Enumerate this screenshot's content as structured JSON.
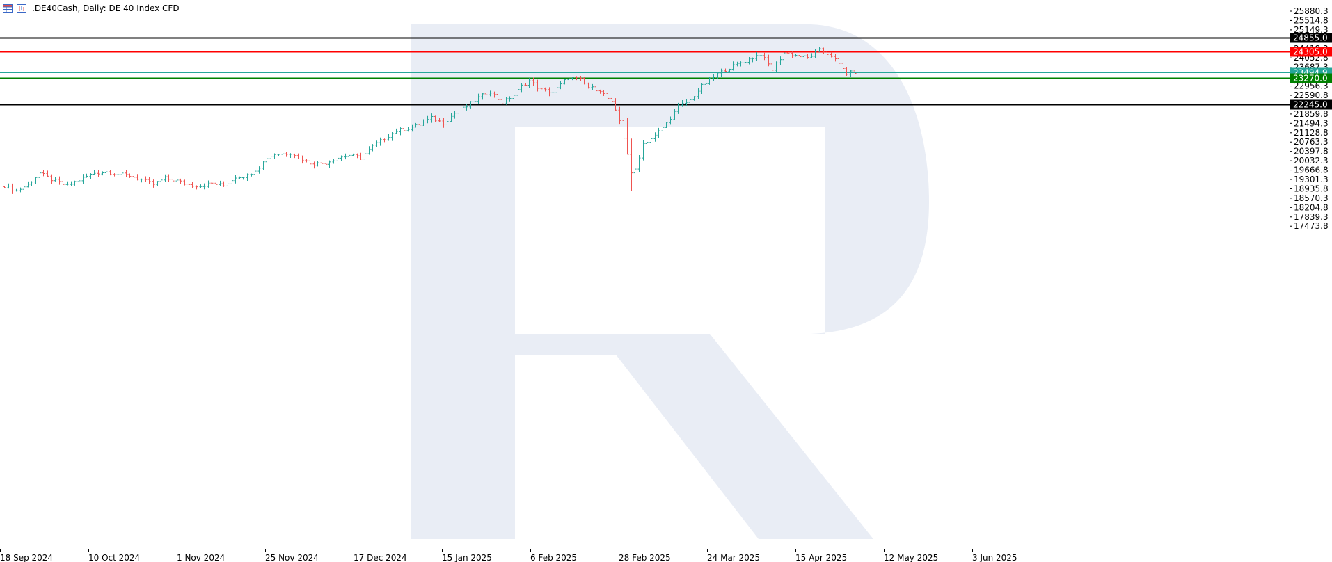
{
  "header": {
    "title": ".DE40Cash, Daily:  DE 40 Index CFD",
    "icons": [
      "table-icon",
      "chart-window-icon"
    ]
  },
  "colors": {
    "bull": "#26a69a",
    "bear": "#ef5350",
    "watermark": "#e9edf5",
    "resistance_high": "#000000",
    "resistance": "#ff0000",
    "current_price": "#26a69a",
    "support": "#008000",
    "support_low": "#000000"
  },
  "chart_data": {
    "type": "ohlc",
    "symbol": ".DE40Cash",
    "timeframe": "Daily",
    "title": ".DE40Cash, Daily:  DE 40 Index CFD",
    "ylim": [
      17200,
      26050
    ],
    "grid": false,
    "y_ticks": [
      "25880.3",
      "25514.8",
      "25149.3",
      "24783.8",
      "24418.3",
      "24052.8",
      "23687.3",
      "23321.8",
      "22956.3",
      "22590.8",
      "22225.3",
      "21859.8",
      "21494.3",
      "21128.8",
      "20763.3",
      "20397.8",
      "20032.3",
      "19666.8",
      "19301.3",
      "18935.8",
      "18570.3",
      "18204.8",
      "17839.3",
      "17473.8"
    ],
    "x_ticks": [
      "18 Sep 2024",
      "10 Oct 2024",
      "1 Nov 2024",
      "25 Nov 2024",
      "17 Dec 2024",
      "15 Jan 2025",
      "6 Feb 2025",
      "28 Feb 2025",
      "24 Mar 2025",
      "15 Apr 2025",
      "12 May 2025",
      "3 Jun 2025"
    ],
    "horizontal_levels": [
      {
        "value": 24855.0,
        "label": "24855.0",
        "style": "resistance_high"
      },
      {
        "value": 24305.0,
        "label": "24305.0",
        "style": "resistance"
      },
      {
        "value": 23494.9,
        "label": "23494.9",
        "style": "current_price"
      },
      {
        "value": 23270.0,
        "label": "23270.0",
        "style": "support"
      },
      {
        "value": 22245.0,
        "label": "22245.0",
        "style": "support_low"
      }
    ],
    "anchors": [
      [
        0,
        19050
      ],
      [
        3,
        18850
      ],
      [
        6,
        19100
      ],
      [
        9,
        19550
      ],
      [
        12,
        19300
      ],
      [
        16,
        19050
      ],
      [
        20,
        19350
      ],
      [
        23,
        19550
      ],
      [
        26,
        19600
      ],
      [
        29,
        19500
      ],
      [
        32,
        19450
      ],
      [
        35,
        19300
      ],
      [
        38,
        19100
      ],
      [
        41,
        19350
      ],
      [
        44,
        19250
      ],
      [
        47,
        19100
      ],
      [
        50,
        19050
      ],
      [
        53,
        19150
      ],
      [
        56,
        19050
      ],
      [
        59,
        19400
      ],
      [
        62,
        19450
      ],
      [
        65,
        19800
      ],
      [
        67,
        20150
      ],
      [
        69,
        20300
      ],
      [
        71,
        20300
      ],
      [
        73,
        20350
      ],
      [
        75,
        20200
      ],
      [
        77,
        20000
      ],
      [
        79,
        19900
      ],
      [
        82,
        19950
      ],
      [
        85,
        20150
      ],
      [
        88,
        20250
      ],
      [
        91,
        20150
      ],
      [
        94,
        20600
      ],
      [
        97,
        20900
      ],
      [
        100,
        21200
      ],
      [
        103,
        21300
      ],
      [
        106,
        21450
      ],
      [
        109,
        21700
      ],
      [
        112,
        21500
      ],
      [
        115,
        21900
      ],
      [
        118,
        22150
      ],
      [
        121,
        22500
      ],
      [
        124,
        22750
      ],
      [
        127,
        22300
      ],
      [
        130,
        22600
      ],
      [
        132,
        22950
      ],
      [
        134,
        23150
      ],
      [
        137,
        22800
      ],
      [
        140,
        22700
      ],
      [
        142,
        23000
      ],
      [
        144,
        23300
      ],
      [
        147,
        23200
      ],
      [
        149,
        22900
      ],
      [
        152,
        22800
      ],
      [
        155,
        22300
      ],
      [
        157,
        21600
      ],
      [
        159,
        20300
      ],
      [
        160,
        19500
      ],
      [
        161,
        19700
      ],
      [
        163,
        20700
      ],
      [
        166,
        21000
      ],
      [
        169,
        21500
      ],
      [
        172,
        22150
      ],
      [
        175,
        22400
      ],
      [
        178,
        22950
      ],
      [
        181,
        23300
      ],
      [
        184,
        23600
      ],
      [
        187,
        23800
      ],
      [
        190,
        24000
      ],
      [
        193,
        24200
      ],
      [
        196,
        23600
      ],
      [
        199,
        24250
      ],
      [
        202,
        24150
      ],
      [
        205,
        24050
      ],
      [
        208,
        24350
      ],
      [
        211,
        24150
      ],
      [
        213,
        23800
      ],
      [
        215,
        23450
      ],
      [
        217,
        23500
      ]
    ],
    "candles_total": 218
  }
}
